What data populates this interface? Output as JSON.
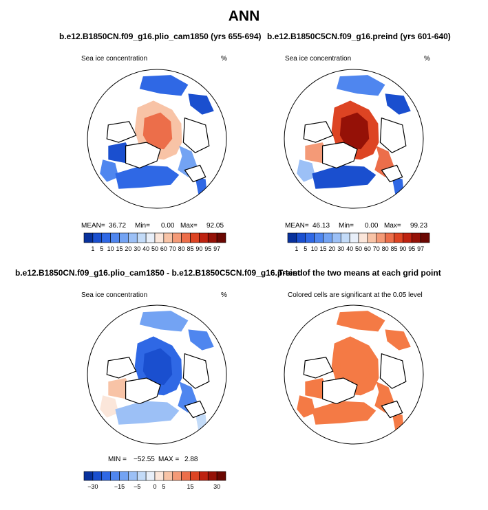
{
  "main_title": "ANN",
  "panels": [
    {
      "title": "b.e12.B1850CN.f09_g16.plio_cam1850 (yrs 655-694)",
      "subtitle": "Sea ice concentration",
      "units": "%",
      "stats": {
        "mean_label": "MEAN=",
        "mean": "36.72",
        "min_label": "Min=",
        "min": "0.00",
        "max_label": "Max=",
        "max": "92.05"
      }
    },
    {
      "title": "b.e12.B1850C5CN.f09_g16.preind (yrs 601-640)",
      "subtitle": "Sea ice concentration",
      "units": "%",
      "stats": {
        "mean_label": "MEAN=",
        "mean": "46.13",
        "min_label": "Min=",
        "min": "0.00",
        "max_label": "Max=",
        "max": "99.23"
      }
    },
    {
      "title": "b.e12.B1850CN.f09_g16.plio_cam1850 - b.e12.B1850C5CN.f09_g16.preind",
      "subtitle": "Sea ice concentration",
      "units": "%",
      "stats": {
        "min_label": "MIN =",
        "min": "−52.55",
        "max_label": "MAX =",
        "max": "2.88"
      }
    },
    {
      "title": "T-test of the two means at each grid point",
      "subtitle": "Colored cells are significant at the 0.05 level"
    }
  ],
  "chart_data": [
    {
      "type": "heatmap",
      "projection": "north-polar-stereographic",
      "field": "sea ice concentration",
      "units": "%",
      "title": "b.e12.B1850CN.f09_g16.plio_cam1850 (yrs 655-694)",
      "mean": 36.72,
      "min": 0.0,
      "max": 92.05,
      "colorbar_levels": [
        1,
        5,
        10,
        15,
        20,
        30,
        40,
        50,
        60,
        70,
        80,
        85,
        90,
        95,
        97
      ],
      "colorbar_labels": [
        "1",
        "5",
        "10",
        "15",
        "20",
        "30",
        "40",
        "50",
        "60",
        "70",
        "80",
        "85",
        "90",
        "95",
        "97"
      ]
    },
    {
      "type": "heatmap",
      "projection": "north-polar-stereographic",
      "field": "sea ice concentration",
      "units": "%",
      "title": "b.e12.B1850C5CN.f09_g16.preind (yrs 601-640)",
      "mean": 46.13,
      "min": 0.0,
      "max": 99.23,
      "colorbar_levels": [
        1,
        5,
        10,
        15,
        20,
        30,
        40,
        50,
        60,
        70,
        80,
        85,
        90,
        95,
        97
      ],
      "colorbar_labels": [
        "1",
        "5",
        "10",
        "15",
        "20",
        "30",
        "40",
        "50",
        "60",
        "70",
        "80",
        "85",
        "90",
        "95",
        "97"
      ]
    },
    {
      "type": "heatmap",
      "projection": "north-polar-stereographic",
      "field": "sea ice concentration difference",
      "units": "%",
      "title": "b.e12.B1850CN.f09_g16.plio_cam1850 - b.e12.B1850C5CN.f09_g16.preind",
      "min": -52.55,
      "max": 2.88,
      "colorbar_levels": [
        -30,
        -25,
        -20,
        -15,
        -10,
        -5,
        -1,
        0,
        1,
        5,
        10,
        15,
        20,
        25,
        30
      ],
      "colorbar_labels": [
        "−30",
        "−15",
        "−5",
        "0",
        "5",
        "15",
        "30"
      ]
    },
    {
      "type": "heatmap",
      "projection": "north-polar-stereographic",
      "field": "t-test significance",
      "title": "T-test of the two means at each grid point",
      "note": "Colored cells are significant at the 0.05 level"
    }
  ],
  "colors": {
    "seq": [
      "#08319c",
      "#1a4fcf",
      "#2f68e5",
      "#4f86ef",
      "#73a3f3",
      "#9cc0f6",
      "#c3dbf8",
      "#e8eff9",
      "#fbe6da",
      "#f8c3a6",
      "#f49a77",
      "#ec6e4a",
      "#dd4423",
      "#be2210",
      "#951107",
      "#6a0702"
    ],
    "div": [
      "#08319c",
      "#1a4fcf",
      "#2f68e5",
      "#4f86ef",
      "#73a3f3",
      "#9cc0f6",
      "#c3dbf8",
      "#e8eff9",
      "#fbe6da",
      "#f8c3a6",
      "#f49a77",
      "#ec6e4a",
      "#dd4423",
      "#be2210",
      "#951107",
      "#6a0702"
    ],
    "signif": "#f47a45",
    "land": "#ffffff",
    "coast": "#000000"
  }
}
